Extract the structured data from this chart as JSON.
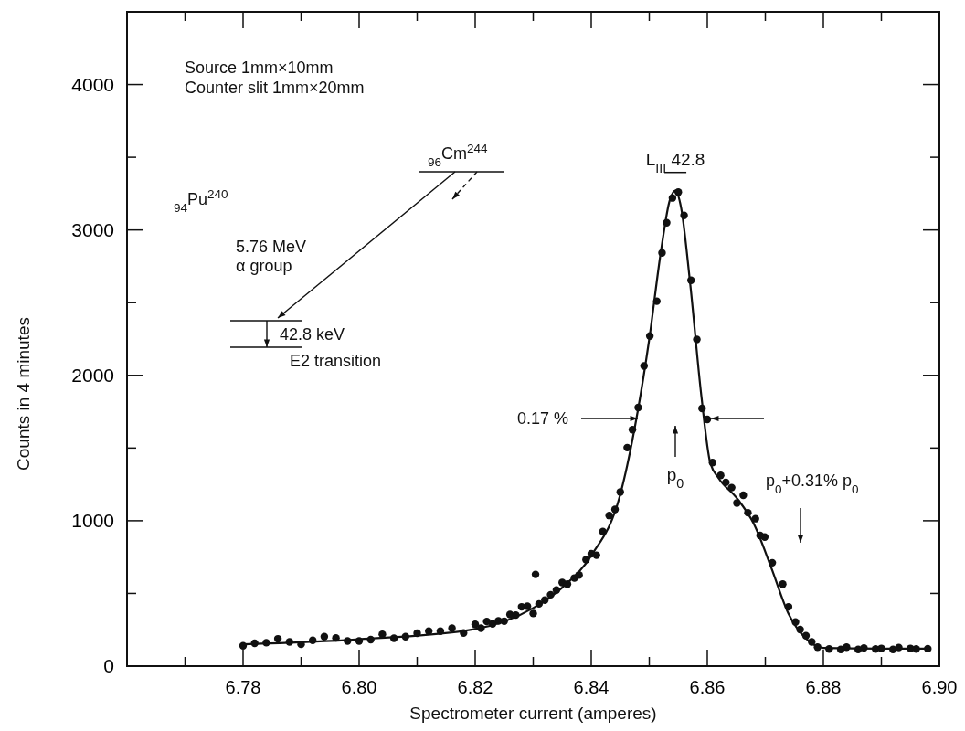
{
  "chart_data": {
    "type": "scatter",
    "xlabel": "Spectrometer current (amperes)",
    "ylabel": "Counts in 4 minutes",
    "xlim": [
      6.76,
      6.9
    ],
    "ylim": [
      0,
      4500
    ],
    "xticks": [
      {
        "value": 6.77,
        "label": null
      },
      "6.78",
      {
        "value": 6.79,
        "label": null
      },
      {
        "value": 6.8,
        "label": "6.80"
      },
      {
        "value": 6.81,
        "label": null
      },
      {
        "value": 6.82,
        "label": "6.82"
      },
      {
        "value": 6.83,
        "label": null
      },
      {
        "value": 6.84,
        "label": "6.84"
      },
      {
        "value": 6.85,
        "label": null
      },
      {
        "value": 6.86,
        "label": "6.86"
      },
      {
        "value": 6.87,
        "label": null
      },
      {
        "value": 6.88,
        "label": "6.88"
      },
      {
        "value": 6.89,
        "label": null
      },
      {
        "value": 6.9,
        "label": "6.90"
      }
    ],
    "yticks": [
      0,
      {
        "value": 500,
        "label": null
      },
      1000,
      {
        "value": 1500,
        "label": null
      },
      2000,
      {
        "value": 2500,
        "label": null
      },
      3000,
      {
        "value": 3500,
        "label": null
      },
      4000
    ],
    "grid": false,
    "series": [
      {
        "type": "scatter",
        "color": "#111111",
        "marker": "circle",
        "x": [
          6.78,
          6.782,
          6.784,
          6.786,
          6.788,
          6.79,
          6.792,
          6.794,
          6.796,
          6.798,
          6.8,
          6.802,
          6.804,
          6.806,
          6.808,
          6.81,
          6.812,
          6.814,
          6.816,
          6.818,
          6.82,
          6.821,
          6.822,
          6.823,
          6.824,
          6.825,
          6.826,
          6.827,
          6.828,
          6.829,
          6.83,
          6.8304,
          6.831,
          6.832,
          6.833,
          6.834,
          6.835,
          6.8359,
          6.8371,
          6.8379,
          6.8391,
          6.84,
          6.8409,
          6.842,
          6.8431,
          6.8441,
          6.845,
          6.8462,
          6.8471,
          6.8481,
          6.8491,
          6.8501,
          6.8513,
          6.8522,
          6.853,
          6.854,
          6.855,
          6.856,
          6.8572,
          6.8582,
          6.8591,
          6.86,
          6.8609,
          6.8623,
          6.8632,
          6.8642,
          6.8651,
          6.8662,
          6.867,
          6.8683,
          6.8691,
          6.8699,
          6.8712,
          6.873,
          6.874,
          6.8752,
          6.876,
          6.877,
          6.878,
          6.879,
          6.881,
          6.883,
          6.884,
          6.886,
          6.887,
          6.889,
          6.89,
          6.892,
          6.893,
          6.895,
          6.896,
          6.898
        ],
        "values": [
          140,
          157,
          161,
          188,
          167,
          150,
          178,
          203,
          194,
          173,
          173,
          182,
          219,
          192,
          203,
          226,
          240,
          240,
          261,
          228,
          288,
          261,
          307,
          291,
          311,
          309,
          355,
          351,
          408,
          412,
          362,
          631,
          428,
          454,
          491,
          523,
          575,
          564,
          606,
          627,
          732,
          773,
          763,
          925,
          1036,
          1078,
          1197,
          1503,
          1626,
          1779,
          2065,
          2270,
          2510,
          2842,
          3050,
          3220,
          3260,
          3100,
          2654,
          2247,
          1772,
          1697,
          1400,
          1312,
          1264,
          1228,
          1122,
          1175,
          1055,
          1014,
          899,
          888,
          711,
          564,
          408,
          303,
          251,
          209,
          167,
          130,
          118,
          115,
          130,
          115,
          125,
          118,
          122,
          115,
          128,
          122,
          118,
          120
        ]
      },
      {
        "type": "line",
        "color": "#111111",
        "marker": "none",
        "line_style": "solid",
        "x": [
          6.78,
          6.8,
          6.82,
          6.83,
          6.835,
          6.84,
          6.845,
          6.848,
          6.85,
          6.852,
          6.8535,
          6.8545,
          6.8555,
          6.857,
          6.859,
          6.8605,
          6.862,
          6.865,
          6.868,
          6.871,
          6.874,
          6.877,
          6.88,
          6.89,
          6.898
        ],
        "values": [
          150,
          185,
          255,
          400,
          540,
          760,
          1180,
          1750,
          2250,
          2850,
          3200,
          3270,
          3150,
          2650,
          1850,
          1400,
          1290,
          1160,
          980,
          680,
          360,
          190,
          125,
          120,
          120
        ]
      }
    ],
    "annotations": [
      "Source 1mm×10mm",
      "Counter slit 1mm×20mm",
      "$_{96}$Cm$^{244}$",
      "$_{94}$Pu$^{240}$",
      "5.76 MeV",
      "α group",
      "42.8 keV",
      "E2 transition",
      {
        "text": "L$_{III}$ 42.8",
        "x": 6.8545,
        "y": 3270
      },
      "0.17 %",
      "p$_{0}$",
      "p$_{0}$+0.31% p$_{0}$"
    ]
  }
}
